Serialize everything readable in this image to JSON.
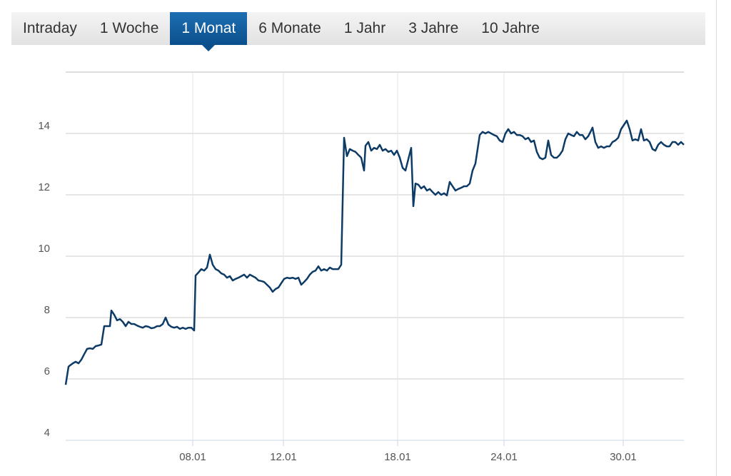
{
  "tabs": [
    {
      "label": "Intraday",
      "selected": false
    },
    {
      "label": "1 Woche",
      "selected": false
    },
    {
      "label": "1 Monat",
      "selected": true
    },
    {
      "label": "6 Monate",
      "selected": false
    },
    {
      "label": "1 Jahr",
      "selected": false
    },
    {
      "label": "3 Jahre",
      "selected": false
    },
    {
      "label": "10 Jahre",
      "selected": false
    }
  ],
  "chart_data": {
    "type": "line",
    "color": "#0d3b66",
    "x": [
      0,
      4,
      6,
      10,
      14,
      18,
      22,
      26,
      30,
      34,
      38,
      42,
      46,
      50,
      54,
      58,
      62,
      64,
      68,
      72,
      76,
      80,
      84,
      88,
      92,
      96,
      100,
      104,
      108,
      112,
      116,
      120,
      124,
      128,
      132,
      136,
      140,
      144,
      148,
      152,
      156,
      160,
      164,
      168,
      172,
      176,
      180,
      182,
      186,
      190,
      194,
      198,
      202,
      206,
      210,
      214,
      218,
      222,
      226,
      230,
      234,
      238,
      242,
      246,
      250,
      254,
      258,
      262,
      266,
      270,
      274,
      278,
      282,
      286,
      290,
      294,
      298,
      302,
      306,
      310,
      314,
      318,
      322,
      326,
      330,
      334,
      338,
      342,
      346,
      350,
      354,
      358,
      362,
      366,
      370,
      374,
      378,
      382,
      386,
      390,
      394,
      398,
      402,
      406,
      410,
      414,
      418,
      420,
      424,
      428,
      432,
      436,
      440,
      444,
      448,
      452,
      456,
      460,
      464,
      468,
      472,
      476,
      480,
      484,
      487,
      490,
      494,
      498,
      502,
      506,
      510,
      514,
      518,
      522,
      526,
      530,
      534,
      538,
      542,
      546,
      550,
      554,
      558,
      562,
      566,
      570,
      574,
      580,
      584,
      588,
      592,
      596,
      600,
      604,
      608,
      612,
      616,
      620,
      624,
      628,
      632,
      636,
      640,
      644,
      648,
      652,
      656,
      660,
      664,
      668,
      672,
      676,
      680,
      684,
      688,
      692,
      696,
      700,
      704,
      708,
      712,
      716,
      720,
      724,
      728,
      732,
      736,
      738,
      742,
      746,
      750,
      754,
      758,
      762,
      766,
      770,
      774,
      778,
      782,
      786,
      790,
      794,
      798,
      802,
      806,
      810,
      814,
      818,
      822,
      826,
      830,
      834,
      838,
      842,
      846,
      850,
      854,
      858,
      862,
      866
    ],
    "values": [
      5.81,
      6.4,
      6.44,
      6.51,
      6.56,
      6.51,
      6.63,
      6.81,
      6.98,
      7.0,
      6.98,
      7.07,
      7.09,
      7.12,
      7.72,
      7.72,
      7.72,
      8.23,
      8.09,
      7.91,
      7.95,
      7.86,
      7.72,
      7.86,
      7.79,
      7.79,
      7.74,
      7.7,
      7.67,
      7.72,
      7.7,
      7.65,
      7.67,
      7.72,
      7.72,
      7.79,
      8.0,
      7.77,
      7.7,
      7.67,
      7.7,
      7.63,
      7.67,
      7.63,
      7.67,
      7.67,
      7.58,
      9.37,
      9.47,
      9.58,
      9.53,
      9.63,
      10.05,
      9.72,
      9.58,
      9.53,
      9.44,
      9.4,
      9.3,
      9.35,
      9.21,
      9.26,
      9.3,
      9.35,
      9.4,
      9.3,
      9.4,
      9.35,
      9.3,
      9.21,
      9.19,
      9.16,
      9.07,
      8.98,
      8.84,
      8.93,
      8.98,
      9.12,
      9.26,
      9.3,
      9.28,
      9.3,
      9.26,
      9.3,
      9.07,
      9.16,
      9.26,
      9.4,
      9.49,
      9.53,
      9.67,
      9.53,
      9.58,
      9.53,
      9.63,
      9.58,
      9.58,
      9.58,
      9.72,
      13.86,
      13.26,
      13.49,
      13.44,
      13.4,
      13.3,
      13.21,
      12.79,
      13.6,
      13.72,
      13.44,
      13.53,
      13.49,
      13.63,
      13.44,
      13.49,
      13.4,
      13.44,
      13.3,
      13.44,
      13.21,
      12.88,
      12.79,
      13.16,
      13.53,
      11.63,
      12.37,
      12.33,
      12.21,
      12.28,
      12.14,
      12.19,
      12.09,
      12.0,
      12.09,
      12.0,
      12.05,
      11.98,
      12.42,
      12.28,
      12.14,
      12.19,
      12.23,
      12.28,
      12.28,
      12.37,
      12.79,
      13.02,
      13.95,
      14.05,
      14.0,
      14.05,
      14.0,
      13.95,
      13.91,
      13.77,
      13.72,
      14.0,
      14.14,
      14.0,
      14.05,
      13.95,
      13.95,
      13.91,
      13.81,
      13.86,
      13.72,
      13.77,
      13.4,
      13.21,
      13.16,
      13.21,
      13.77,
      13.3,
      13.21,
      13.21,
      13.3,
      13.44,
      13.81,
      14.0,
      13.95,
      13.91,
      14.05,
      13.95,
      13.95,
      13.81,
      13.91,
      14.09,
      14.19,
      13.72,
      13.53,
      13.58,
      13.53,
      13.58,
      13.58,
      13.72,
      13.77,
      13.86,
      14.14,
      14.28,
      14.42,
      14.14,
      13.77,
      13.81,
      13.77,
      14.14,
      13.77,
      13.81,
      13.72,
      13.49,
      13.44,
      13.63,
      13.72,
      13.63,
      13.58,
      13.58,
      13.72,
      13.72,
      13.63,
      13.72,
      13.63
    ],
    "xlim": [
      0,
      866
    ],
    "ylim": [
      4,
      16
    ],
    "xticks": [
      {
        "value": 178,
        "label": "08.01"
      },
      {
        "value": 305,
        "label": "12.01"
      },
      {
        "value": 465,
        "label": "18.01"
      },
      {
        "value": 614,
        "label": "24.01"
      },
      {
        "value": 781,
        "label": "30.01"
      }
    ],
    "yticks": [
      4,
      6,
      8,
      10,
      12,
      14
    ],
    "grid": true
  }
}
